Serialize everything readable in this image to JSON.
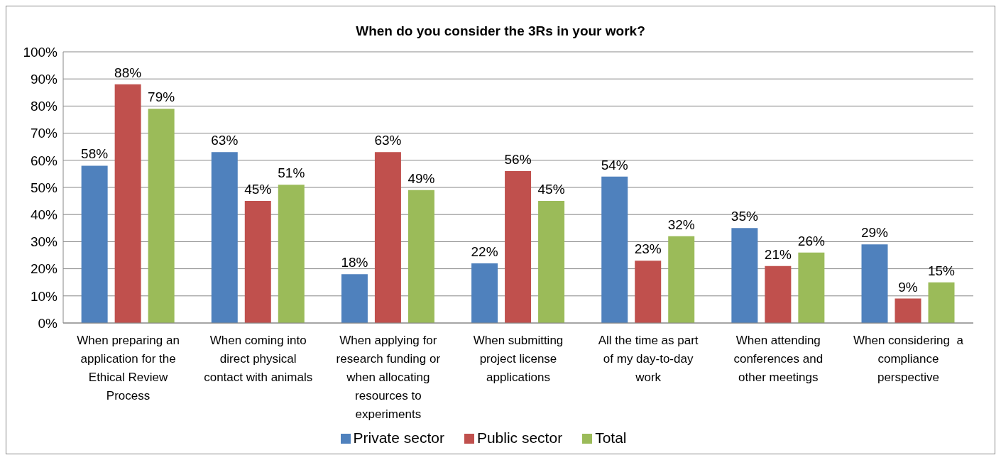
{
  "chart_data": {
    "type": "bar",
    "title": "When do you consider the 3Rs in your work?",
    "categories": [
      "When preparing an application for the Ethical Review Process",
      "When coming into direct physical contact with animals",
      "When applying for research funding or when allocating resources to experiments",
      "When submitting project license applications",
      "All the time as part of my day-to-day work",
      "When attending conferences and other meetings",
      "When considering  a compliance perspective"
    ],
    "series": [
      {
        "name": "Private sector",
        "color": "#4f81bd",
        "values": [
          58,
          63,
          18,
          22,
          54,
          35,
          29
        ],
        "value_labels": [
          "58%",
          "63%",
          "18%",
          "22%",
          "54%",
          "35%",
          "29%"
        ]
      },
      {
        "name": "Public sector",
        "color": "#c0504d",
        "values": [
          88,
          45,
          63,
          56,
          23,
          21,
          9
        ],
        "value_labels": [
          "88%",
          "45%",
          "63%",
          "56%",
          "23%",
          "21%",
          "9%"
        ]
      },
      {
        "name": "Total",
        "color": "#9bbb59",
        "values": [
          79,
          51,
          49,
          45,
          32,
          26,
          15
        ],
        "value_labels": [
          "79%",
          "51%",
          "49%",
          "45%",
          "32%",
          "26%",
          "15%"
        ]
      }
    ],
    "ylim": [
      0,
      100
    ],
    "yticks": [
      {
        "value": 0,
        "label": "0%"
      },
      {
        "value": 10,
        "label": "10%"
      },
      {
        "value": 20,
        "label": "20%"
      },
      {
        "value": 30,
        "label": "30%"
      },
      {
        "value": 40,
        "label": "40%"
      },
      {
        "value": 50,
        "label": "50%"
      },
      {
        "value": 60,
        "label": "60%"
      },
      {
        "value": 70,
        "label": "70%"
      },
      {
        "value": 80,
        "label": "80%"
      },
      {
        "value": 90,
        "label": "90%"
      },
      {
        "value": 100,
        "label": "100%"
      }
    ],
    "grid": "y",
    "legend": "bottom"
  }
}
